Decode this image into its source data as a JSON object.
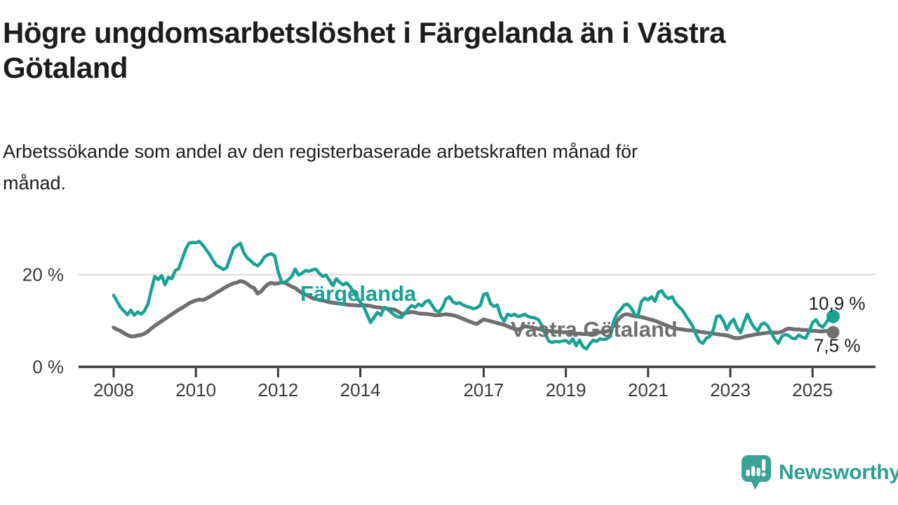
{
  "header": {
    "title_lines": [
      "Högre ungdomsarbetslöshet i Färgelanda än i Västra",
      "Götaland"
    ],
    "subtitle_lines": [
      "Arbetssökande som andel av den registerbaserade arbetskraften månad för",
      "månad."
    ]
  },
  "colors": {
    "fargelanda": "#1aa294",
    "vastra_gotaland": "#6f6f6f",
    "axis": "#3b3b3b",
    "gridline": "#dbdbdb",
    "text": "#1d1d1d",
    "brand": "#2da092"
  },
  "branding": {
    "logo_text": "Newsworthy",
    "logo_icon": "speech-bubble-with-bar-chart-and-exclamation"
  },
  "chart_data": {
    "type": "line",
    "title": "Högre ungdomsarbetslöshet i Färgelanda än i Västra Götaland",
    "subtitle": "Arbetssökande som andel av den registerbaserade arbetskraften månad för månad.",
    "unit": "%",
    "x_start": 2008.0,
    "x_step_months": 1,
    "xlim": [
      2007.15,
      2026.35
    ],
    "ylim": [
      0,
      29
    ],
    "x_ticks": [
      2008,
      2010,
      2012,
      2014,
      2017,
      2019,
      2021,
      2023,
      2025
    ],
    "y_ticks": [
      {
        "value": 0,
        "label": "0 %"
      },
      {
        "value": 20,
        "label": "20 %"
      }
    ],
    "grid": {
      "y_gridlines": [
        20
      ]
    },
    "legend_position": "inline-labels",
    "series": [
      {
        "name": "Färgelanda",
        "slug": "fargelanda",
        "color": "#1aa294",
        "end_label": "10,9 %",
        "end_value": 10.9,
        "values": [
          15.5,
          14.2,
          12.9,
          12.1,
          11.3,
          12.3,
          11.2,
          11.9,
          11.4,
          12.1,
          13.6,
          16.7,
          19.6,
          18.9,
          19.8,
          17.8,
          19.4,
          19.1,
          20.9,
          21.3,
          23.4,
          25.5,
          26.8,
          27.0,
          26.9,
          27.2,
          26.4,
          25.4,
          24.4,
          23.1,
          22.0,
          21.6,
          21.1,
          21.5,
          23.6,
          25.7,
          26.3,
          26.8,
          24.7,
          23.6,
          23.0,
          22.3,
          21.9,
          22.6,
          23.8,
          24.3,
          24.5,
          24.1,
          20.7,
          18.4,
          18.3,
          18.9,
          19.6,
          21.2,
          19.9,
          20.3,
          20.9,
          20.7,
          21.0,
          21.2,
          20.3,
          19.6,
          19.9,
          18.7,
          17.6,
          19.1,
          18.3,
          17.8,
          18.2,
          17.4,
          16.3,
          15.1,
          14.0,
          13.0,
          11.3,
          9.6,
          10.7,
          11.8,
          11.2,
          12.9,
          12.5,
          11.8,
          11.2,
          10.8,
          10.7,
          11.6,
          12.6,
          13.3,
          12.9,
          13.6,
          13.2,
          14.1,
          14.4,
          13.3,
          12.2,
          11.9,
          12.9,
          14.7,
          15.2,
          14.1,
          13.7,
          13.9,
          13.4,
          13.1,
          12.9,
          12.6,
          12.8,
          13.3,
          15.7,
          15.9,
          13.7,
          13.1,
          13.4,
          11.0,
          9.9,
          11.4,
          11.1,
          11.4,
          10.9,
          11.1,
          11.4,
          10.9,
          10.7,
          10.6,
          10.2,
          9.0,
          7.0,
          5.6,
          5.3,
          5.5,
          5.4,
          5.6,
          5.7,
          5.1,
          6.1,
          4.6,
          5.8,
          4.3,
          3.9,
          5.0,
          5.8,
          5.5,
          6.1,
          5.9,
          6.1,
          6.6,
          10.0,
          11.6,
          12.4,
          13.4,
          13.6,
          12.8,
          11.5,
          10.9,
          14.1,
          14.9,
          14.5,
          15.2,
          14.2,
          16.2,
          16.5,
          15.3,
          14.8,
          15.2,
          13.8,
          13.0,
          12.3,
          11.1,
          10.0,
          8.8,
          7.0,
          5.5,
          5.1,
          6.2,
          6.6,
          8.0,
          10.9,
          11.1,
          9.9,
          8.1,
          9.6,
          10.3,
          8.4,
          7.4,
          9.6,
          11.4,
          9.7,
          8.5,
          7.8,
          9.2,
          9.5,
          8.8,
          7.3,
          6.0,
          5.1,
          6.6,
          7.0,
          6.8,
          6.2,
          6.1,
          6.9,
          6.4,
          6.2,
          7.7,
          9.6,
          10.2,
          9.0,
          8.6,
          9.6,
          10.7,
          10.9
        ]
      },
      {
        "name": "Västra Götaland",
        "slug": "vastra-gotaland",
        "color": "#6f6f6f",
        "end_label": "7,5 %",
        "end_value": 7.5,
        "values": [
          8.5,
          8.1,
          7.8,
          7.3,
          6.9,
          6.6,
          6.6,
          6.8,
          6.9,
          7.2,
          7.7,
          8.3,
          8.9,
          9.4,
          9.9,
          10.4,
          10.9,
          11.4,
          11.9,
          12.4,
          12.8,
          13.3,
          13.8,
          14.1,
          14.4,
          14.6,
          14.5,
          14.8,
          15.2,
          15.6,
          16.1,
          16.5,
          17.0,
          17.4,
          17.8,
          18.1,
          18.3,
          18.6,
          18.4,
          18.0,
          17.4,
          17.1,
          15.9,
          16.3,
          17.2,
          17.9,
          18.2,
          18.0,
          18.1,
          18.3,
          18.2,
          17.8,
          17.4,
          17.1,
          16.5,
          16.0,
          15.7,
          15.3,
          14.9,
          14.7,
          14.5,
          14.4,
          14.2,
          14.0,
          13.9,
          13.8,
          13.7,
          13.6,
          13.5,
          13.4,
          13.4,
          13.3,
          13.3,
          13.4,
          13.3,
          13.2,
          13.0,
          12.9,
          12.8,
          12.7,
          12.6,
          12.5,
          12.4,
          12.0,
          11.5,
          11.6,
          11.8,
          11.9,
          11.8,
          11.6,
          11.5,
          11.5,
          11.4,
          11.3,
          11.2,
          11.2,
          11.3,
          11.4,
          11.3,
          11.2,
          11.0,
          10.7,
          10.4,
          10.1,
          9.8,
          9.5,
          9.3,
          9.8,
          10.3,
          10.1,
          9.9,
          9.7,
          9.5,
          9.3,
          9.1,
          8.8,
          8.5,
          8.2,
          8.1,
          8.3,
          8.8,
          8.7,
          8.5,
          8.4,
          8.2,
          8.1,
          7.9,
          7.8,
          7.7,
          7.6,
          7.6,
          7.5,
          7.5,
          7.4,
          7.3,
          7.2,
          7.2,
          7.1,
          7.1,
          7.2,
          7.3,
          7.4,
          7.5,
          7.6,
          7.7,
          8.0,
          9.0,
          10.0,
          10.8,
          11.3,
          11.4,
          11.2,
          11.0,
          10.9,
          10.8,
          10.6,
          10.4,
          10.2,
          10.0,
          9.7,
          9.4,
          9.1,
          8.8,
          8.5,
          8.3,
          8.2,
          8.1,
          8.0,
          7.9,
          7.9,
          7.8,
          7.6,
          7.5,
          7.4,
          7.3,
          7.2,
          7.1,
          7.0,
          6.9,
          6.8,
          6.6,
          6.3,
          6.2,
          6.3,
          6.5,
          6.7,
          6.8,
          7.0,
          7.1,
          7.2,
          7.3,
          7.4,
          7.5,
          7.4,
          7.4,
          7.6,
          8.0,
          8.3,
          8.2,
          8.1,
          8.1,
          8.0,
          8.0,
          7.9,
          7.8,
          7.8,
          7.7,
          7.7,
          7.8,
          7.7,
          7.5
        ]
      }
    ]
  }
}
